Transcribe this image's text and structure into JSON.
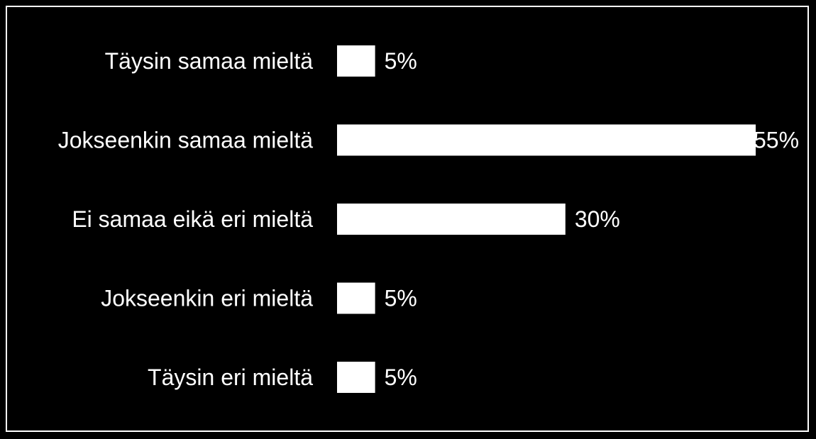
{
  "chart_data": {
    "type": "bar",
    "orientation": "horizontal",
    "categories": [
      "Täysin samaa mieltä",
      "Jokseenkin samaa mieltä",
      "Ei samaa eikä eri mieltä",
      "Jokseenkin eri mieltä",
      "Täysin eri mieltä"
    ],
    "values": [
      5,
      55,
      30,
      5,
      5
    ],
    "value_labels": [
      "5%",
      "55%",
      "30%",
      "5%",
      "5%"
    ],
    "unit": "%",
    "xlim": [
      0,
      55
    ],
    "grid": false,
    "legend": "none",
    "colors": {
      "background": "#000000",
      "bar": "#ffffff",
      "text": "#ffffff",
      "border": "#ffffff"
    }
  }
}
